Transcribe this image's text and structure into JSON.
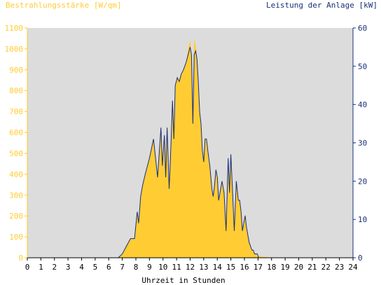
{
  "chart_data": {
    "type": "area",
    "title_left": "Bestrahlungsstärke [W/qm]",
    "title_right": "Leistung der Anlage [kW]",
    "xlabel": "Uhrzeit in Stunden",
    "x_ticks": [
      "0",
      "1",
      "2",
      "3",
      "4",
      "5",
      "6",
      "7",
      "8",
      "9",
      "10",
      "11",
      "12",
      "13",
      "14",
      "15",
      "16",
      "17",
      "18",
      "19",
      "20",
      "21",
      "22",
      "23",
      "24"
    ],
    "xlim": [
      0,
      24
    ],
    "y_left_ticks": [
      "0",
      "100",
      "200",
      "300",
      "400",
      "500",
      "600",
      "700",
      "800",
      "900",
      "1000",
      "1100"
    ],
    "ylim_left": [
      0,
      1100
    ],
    "y_right_ticks": [
      "0",
      "10",
      "20",
      "30",
      "40",
      "50",
      "60"
    ],
    "ylim_right": [
      0,
      60
    ],
    "grid": false,
    "colors": {
      "plot_background": "#dcdcdc",
      "irradiance": "#ffcc33",
      "power": "#1a2f7a",
      "left_axis": "#ffcc33",
      "right_axis": "#1a2f7a",
      "xlabel": "#000000"
    },
    "series": [
      {
        "name": "Bestrahlungsstärke [W/qm]",
        "axis": "left",
        "x": [
          0,
          6.7,
          7.0,
          7.3,
          7.6,
          7.9,
          8.1,
          8.2,
          8.35,
          8.5,
          8.7,
          9.0,
          9.3,
          9.6,
          9.85,
          9.95,
          10.1,
          10.2,
          10.3,
          10.45,
          10.55,
          10.7,
          10.8,
          10.9,
          11.05,
          11.2,
          11.35,
          11.5,
          11.7,
          11.85,
          12.0,
          12.1,
          12.2,
          12.3,
          12.4,
          12.5,
          12.6,
          12.7,
          12.8,
          12.9,
          13.0,
          13.1,
          13.2,
          13.3,
          13.45,
          13.6,
          13.7,
          13.8,
          13.9,
          14.0,
          14.1,
          14.2,
          14.35,
          14.5,
          14.65,
          14.8,
          14.9,
          15.0,
          15.1,
          15.25,
          15.4,
          15.55,
          15.65,
          15.75,
          15.85,
          15.95,
          16.05,
          16.15,
          16.25,
          16.35,
          16.45,
          16.55,
          16.65,
          16.75,
          16.85,
          16.95,
          17.05,
          17.2,
          17.35,
          17.5,
          17.65,
          17.8,
          17.95,
          18.1,
          18.3,
          18.5,
          18.8,
          24
        ],
        "values": [
          0,
          0,
          20,
          60,
          90,
          95,
          220,
          160,
          300,
          350,
          400,
          480,
          560,
          380,
          620,
          430,
          580,
          390,
          620,
          330,
          480,
          760,
          560,
          820,
          870,
          850,
          880,
          900,
          930,
          1000,
          1040,
          970,
          640,
          1045,
          1020,
          960,
          850,
          700,
          640,
          520,
          450,
          570,
          560,
          520,
          440,
          330,
          300,
          350,
          420,
          380,
          280,
          310,
          360,
          320,
          130,
          470,
          310,
          490,
          340,
          120,
          360,
          270,
          280,
          220,
          120,
          170,
          210,
          140,
          110,
          70,
          50,
          40,
          30,
          20,
          15,
          10,
          8,
          6,
          5,
          4,
          3,
          2,
          1,
          1,
          0,
          0,
          0,
          0
        ]
      },
      {
        "name": "Leistung der Anlage [kW]",
        "axis": "right",
        "x": [
          0,
          6.7,
          7.0,
          7.3,
          7.6,
          7.9,
          8.1,
          8.2,
          8.35,
          8.5,
          8.7,
          9.0,
          9.3,
          9.6,
          9.85,
          9.95,
          10.1,
          10.2,
          10.3,
          10.45,
          10.55,
          10.7,
          10.8,
          10.9,
          11.05,
          11.2,
          11.35,
          11.5,
          11.7,
          11.85,
          12.0,
          12.1,
          12.2,
          12.3,
          12.4,
          12.5,
          12.6,
          12.7,
          12.8,
          12.9,
          13.0,
          13.1,
          13.2,
          13.3,
          13.45,
          13.6,
          13.7,
          13.8,
          13.9,
          14.0,
          14.1,
          14.2,
          14.35,
          14.5,
          14.65,
          14.8,
          14.9,
          15.0,
          15.1,
          15.25,
          15.4,
          15.55,
          15.65,
          15.75,
          15.85,
          15.95,
          16.05,
          16.15,
          16.25,
          16.35,
          16.45,
          16.55,
          16.65,
          16.75,
          16.85,
          16.95,
          17.05,
          17.2,
          17.35,
          17.5,
          17.65,
          17.8,
          17.95,
          18.1,
          18.3,
          18.5,
          18.8,
          24
        ],
        "values": [
          0,
          0,
          1,
          3,
          5,
          5,
          12,
          9,
          16,
          19,
          22,
          26,
          31,
          21,
          34,
          24,
          32,
          21,
          34,
          18,
          26,
          41,
          31,
          45,
          47,
          46,
          48,
          49,
          51,
          53,
          55,
          53,
          35,
          53,
          54,
          52,
          46,
          38,
          35,
          28,
          25,
          31,
          31,
          28,
          24,
          18,
          16,
          19,
          23,
          21,
          15,
          17,
          20,
          17,
          7,
          26,
          17,
          27,
          19,
          7,
          20,
          15,
          15,
          12,
          7,
          9,
          11,
          8,
          6,
          4,
          3,
          2,
          2,
          1,
          1,
          1,
          0,
          0,
          0,
          0,
          0,
          0,
          0,
          0,
          0,
          0,
          0,
          0
        ]
      }
    ]
  }
}
